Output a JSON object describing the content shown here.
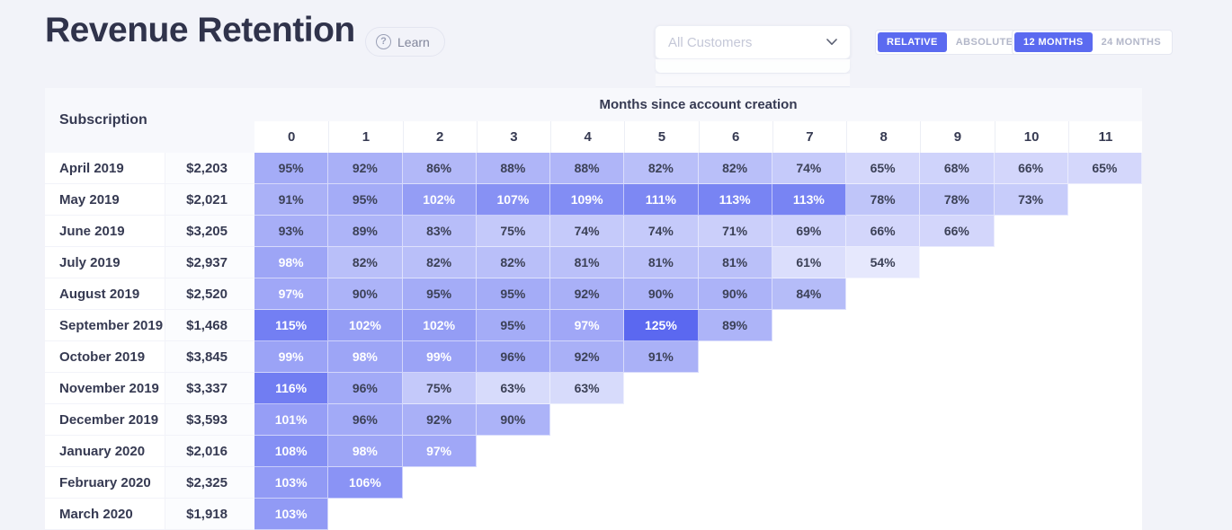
{
  "page": {
    "title": "Revenue Retention",
    "learn_label": "Learn",
    "help_glyph": "?",
    "background": "#f2f3f9",
    "accent": "#5b6af0"
  },
  "controls": {
    "customer_filter": {
      "value": "All Customers"
    },
    "mode_toggle": {
      "options": [
        "RELATIVE",
        "ABSOLUTE"
      ],
      "active_index": 0
    },
    "range_toggle": {
      "options": [
        "12 MONTHS",
        "24 MONTHS"
      ],
      "active_index": 0
    }
  },
  "table": {
    "left_header": "Subscription",
    "months_header": "Months since account creation",
    "month_columns": [
      "0",
      "1",
      "2",
      "3",
      "4",
      "5",
      "6",
      "7",
      "8",
      "9",
      "10",
      "11"
    ],
    "cell_base_color": "#5664F0",
    "white_text_threshold": 97,
    "rows": [
      {
        "cohort": "April 2019",
        "amount": "$2,203",
        "values": [
          95,
          92,
          86,
          88,
          88,
          82,
          82,
          74,
          65,
          68,
          66,
          65
        ]
      },
      {
        "cohort": "May 2019",
        "amount": "$2,021",
        "values": [
          91,
          95,
          102,
          107,
          109,
          111,
          113,
          113,
          78,
          78,
          73
        ]
      },
      {
        "cohort": "June 2019",
        "amount": "$3,205",
        "values": [
          93,
          89,
          83,
          75,
          74,
          74,
          71,
          69,
          66,
          66
        ]
      },
      {
        "cohort": "July 2019",
        "amount": "$2,937",
        "values": [
          98,
          82,
          82,
          82,
          81,
          81,
          81,
          61,
          54
        ]
      },
      {
        "cohort": "August 2019",
        "amount": "$2,520",
        "values": [
          97,
          90,
          95,
          95,
          92,
          90,
          90,
          84
        ]
      },
      {
        "cohort": "September 2019",
        "amount": "$1,468",
        "values": [
          115,
          102,
          102,
          95,
          97,
          125,
          89
        ]
      },
      {
        "cohort": "October 2019",
        "amount": "$3,845",
        "values": [
          99,
          98,
          99,
          96,
          92,
          91
        ]
      },
      {
        "cohort": "November 2019",
        "amount": "$3,337",
        "values": [
          116,
          96,
          75,
          63,
          63
        ]
      },
      {
        "cohort": "December 2019",
        "amount": "$3,593",
        "values": [
          101,
          96,
          92,
          90
        ]
      },
      {
        "cohort": "January 2020",
        "amount": "$2,016",
        "values": [
          108,
          98,
          97
        ]
      },
      {
        "cohort": "February 2020",
        "amount": "$2,325",
        "values": [
          103,
          106
        ]
      },
      {
        "cohort": "March 2020",
        "amount": "$1,918",
        "values": [
          103
        ]
      }
    ]
  }
}
